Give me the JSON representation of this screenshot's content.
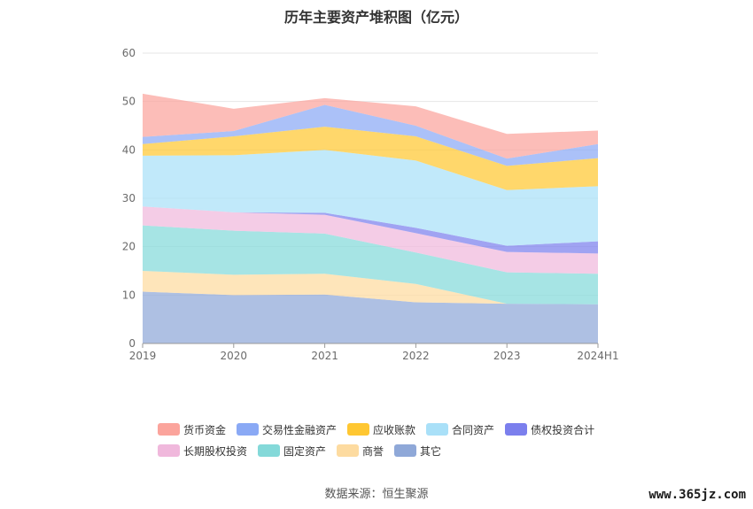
{
  "chart_data": {
    "type": "area",
    "stacked": true,
    "title": "历年主要资产堆积图（亿元）",
    "categories": [
      "2019",
      "2020",
      "2021",
      "2022",
      "2023",
      "2024H1"
    ],
    "ylim": [
      0,
      60
    ],
    "yticks": [
      0,
      10,
      20,
      30,
      40,
      50,
      60
    ],
    "grid": true,
    "legend_position": "bottom",
    "series": [
      {
        "name": "其它",
        "color": "#8fa8d8",
        "values": [
          10.7,
          10.0,
          10.1,
          8.5,
          8.2,
          8.1
        ]
      },
      {
        "name": "商誉",
        "color": "#fddba0",
        "values": [
          4.3,
          4.2,
          4.3,
          3.8,
          0,
          0
        ]
      },
      {
        "name": "固定资产",
        "color": "#84d9d9",
        "values": [
          9.4,
          9.1,
          8.3,
          6.5,
          6.5,
          6.3
        ]
      },
      {
        "name": "长期股权投资",
        "color": "#f0b8dc",
        "values": [
          3.9,
          3.8,
          3.9,
          4.0,
          4.2,
          4.2
        ]
      },
      {
        "name": "债权投资合计",
        "color": "#7b7fed",
        "values": [
          0,
          0,
          0.4,
          1.1,
          1.3,
          2.5
        ]
      },
      {
        "name": "合同资产",
        "color": "#a9e0f8",
        "values": [
          10.5,
          11.8,
          13.0,
          13.9,
          11.5,
          11.4
        ]
      },
      {
        "name": "应收账款",
        "color": "#ffc732",
        "values": [
          2.4,
          3.9,
          4.8,
          5.0,
          5.0,
          5.8
        ]
      },
      {
        "name": "交易性金融资产",
        "color": "#8aa9f5",
        "values": [
          1.5,
          1.1,
          4.5,
          2.2,
          1.5,
          2.9
        ]
      },
      {
        "name": "货币资金",
        "color": "#fba49c",
        "values": [
          8.9,
          4.6,
          1.4,
          4.0,
          5.1,
          2.8
        ]
      }
    ],
    "legend_order": [
      "货币资金",
      "交易性金融资产",
      "应收账款",
      "合同资产",
      "债权投资合计",
      "长期股权投资",
      "固定资产",
      "商誉",
      "其它"
    ]
  },
  "source_text": "数据来源：恒生聚源",
  "watermark_text": "www.365jz.com"
}
